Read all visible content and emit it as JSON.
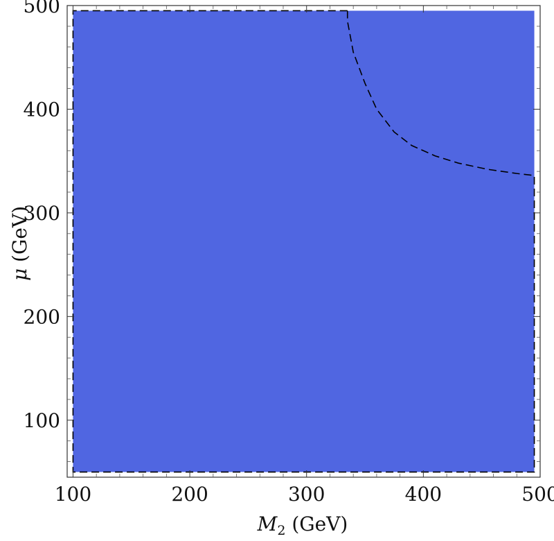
{
  "chart_data": {
    "type": "area",
    "xlabel": {
      "symbol": "M",
      "subscript": "2",
      "unit": " (GeV)"
    },
    "ylabel": {
      "symbol": "μ",
      "unit": " (GeV)"
    },
    "xlim": [
      95,
      500
    ],
    "ylim": [
      45,
      500
    ],
    "x_ticks": [
      "100",
      "200",
      "300",
      "400",
      "500"
    ],
    "y_ticks": [
      "100",
      "200",
      "300",
      "400",
      "500"
    ],
    "fill_color": "#5066e1",
    "grid": false,
    "filled_region": {
      "x": [
        100,
        495
      ],
      "y": [
        50,
        495
      ]
    },
    "contour_dashed": [
      {
        "x": 335,
        "y": 485
      },
      {
        "x": 340,
        "y": 455
      },
      {
        "x": 350,
        "y": 425
      },
      {
        "x": 360,
        "y": 400
      },
      {
        "x": 375,
        "y": 378
      },
      {
        "x": 390,
        "y": 365
      },
      {
        "x": 410,
        "y": 355
      },
      {
        "x": 430,
        "y": 348
      },
      {
        "x": 455,
        "y": 342
      },
      {
        "x": 480,
        "y": 338
      },
      {
        "x": 495,
        "y": 336
      }
    ]
  }
}
